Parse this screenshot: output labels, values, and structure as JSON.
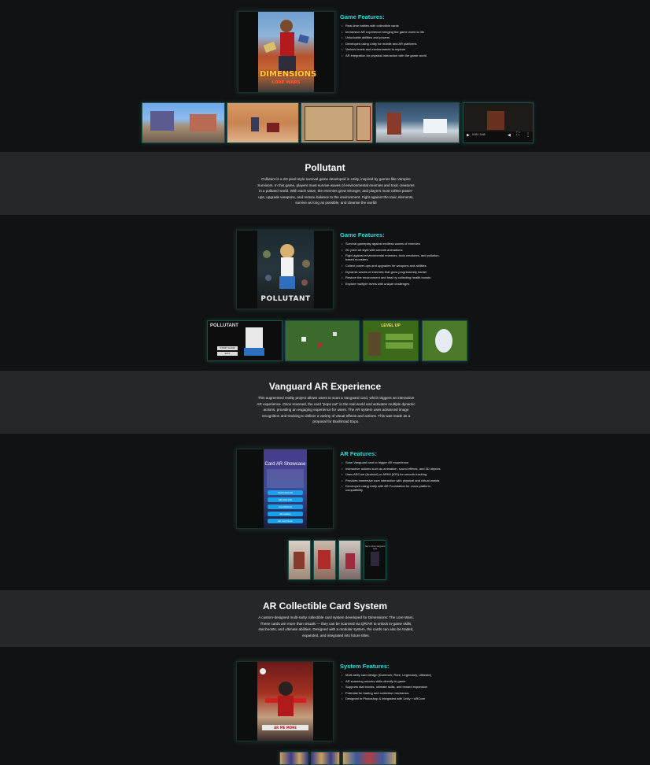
{
  "section1": {
    "cover_title_line1": "DIMENSIONS",
    "cover_title_line2": "LORE WARS",
    "features_title": "Game Features:",
    "features": [
      "Real-time battles with collectible cards",
      "Immersive AR experience bringing the game world to life",
      "Unlockable abilities and powers",
      "Developed using Unity for mobile and AR platforms",
      "Various levels and environments to explore",
      "AR integration for physical interaction with the game world"
    ],
    "video_time": "0:00 / 0:46"
  },
  "pollutant": {
    "title": "Pollutant",
    "description": "Pollutant is a 2D pixel-style survival game developed in Unity, inspired by games like Vampire Survivors. In this game, players must survive waves of environmental enemies and toxic creatures in a polluted world. With each wave, the enemies grow stronger, and players must collect power-ups, upgrade weapons, and restore balance to the environment. Fight against the toxic elements, survive as long as possible, and cleanse the world!",
    "cover_title": "POLLUTANT",
    "features_title": "Game Features:",
    "features": [
      "Survival gameplay against endless waves of enemies",
      "2D pixel art style with smooth animations",
      "Fight against environmental enemies, toxic creatures, and pollution-based monsters",
      "Collect power-ups and upgrades for weapons and abilities",
      "Dynamic waves of enemies that grow progressively harder",
      "Restore the environment and heal by collecting health boosts",
      "Explore multiple levels with unique challenges"
    ],
    "menu_title": "POLLUTANT",
    "menu_start": "START GAME",
    "menu_exit": "EXIT",
    "levelup": "LEVEL UP"
  },
  "vanguard": {
    "title": "Vanguard AR Experience",
    "description": "This augmented reality project allows users to scan a Vanguard card, which triggers an interactive AR experience. Once scanned, the card \"pops out\" in the real world and activates multiple dynamic actions, providing an engaging experience for users. The AR system uses advanced image recognition and tracking to deliver a variety of visual effects and actions. This was made as a proposal for Bushiroad Expo.",
    "phone_title": "Card AR Showcase",
    "phone_buttons": [
      "Start Card AR",
      "AR Card Info",
      "Card Actions",
      "AR Gallery",
      "AR Card Scan"
    ],
    "features_title": "AR Features:",
    "features": [
      "Scan Vanguard card to trigger AR experience",
      "Interactive actions such as animation, sound effects, and 3D objects",
      "Uses ARCore (Android) or ARKit (iOS) for smooth tracking",
      "Provides immersive user interaction with physical and virtual worlds",
      "Developed using Unity with AR Foundation for cross-platform compatibility"
    ],
    "tap_hint": "Tap to show Vanguard card"
  },
  "cards": {
    "title": "AR Collectible Card System",
    "description": "A custom-designed multi-rarity collectible card system developed for Dimensions: The Lore Wars. These cards are more than visuals — they can be scanned via QR/AR to unlock in-game skills, stat boosts, and ultimate abilities. Designed with a modular system, the cards can also be traded, expanded, and integrated into future titles.",
    "features_title": "System Features:",
    "features": [
      "Multi-rarity card design (Common, Rare, Legendary, Ultimate)",
      "AR scanning unlocks skills directly in-game",
      "Supports stat boosts, ultimate skills, and reward expansion",
      "Potential for trading and collection mechanics",
      "Designed in Photoshop & integrated with Unity + ARCore"
    ],
    "card_banner": "AR ME MORE"
  },
  "colors": {
    "background": "#111213",
    "band": "#262728",
    "accent": "#1fe0d8"
  }
}
